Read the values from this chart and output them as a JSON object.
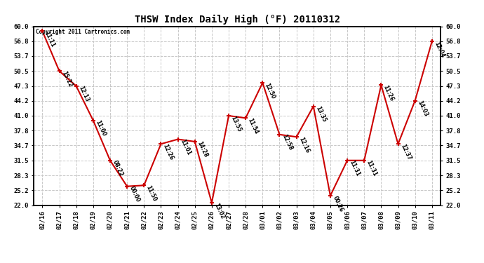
{
  "title": "THSW Index Daily High (°F) 20110312",
  "copyright": "Copyright 2011 Cartronics.com",
  "background_color": "#ffffff",
  "line_color": "#cc0000",
  "marker_color": "#cc0000",
  "grid_color": "#c8c8c8",
  "dates": [
    "02/16",
    "02/17",
    "02/18",
    "02/19",
    "02/20",
    "02/21",
    "02/22",
    "02/23",
    "02/24",
    "02/25",
    "02/26",
    "02/27",
    "02/28",
    "03/01",
    "03/02",
    "03/03",
    "03/04",
    "03/05",
    "03/06",
    "03/07",
    "03/08",
    "03/09",
    "03/10",
    "03/11"
  ],
  "values": [
    59.0,
    50.5,
    47.3,
    40.0,
    31.5,
    26.0,
    26.2,
    35.0,
    36.0,
    35.5,
    22.5,
    41.0,
    40.5,
    48.0,
    37.0,
    36.5,
    43.0,
    24.0,
    31.5,
    31.5,
    47.5,
    35.0,
    44.2,
    56.8
  ],
  "times": [
    "11:11",
    "15:22",
    "12:13",
    "11:00",
    "08:22",
    "00:00",
    "11:50",
    "12:26",
    "11:01",
    "14:28",
    "13:02",
    "13:55",
    "11:54",
    "12:50",
    "12:58",
    "12:16",
    "13:35",
    "00:26",
    "11:31",
    "11:31",
    "11:26",
    "12:37",
    "14:03",
    "12:04"
  ],
  "ylim": [
    22.0,
    60.0
  ],
  "yticks": [
    22.0,
    25.2,
    28.3,
    31.5,
    34.7,
    37.8,
    41.0,
    44.2,
    47.3,
    50.5,
    53.7,
    56.8,
    60.0
  ]
}
